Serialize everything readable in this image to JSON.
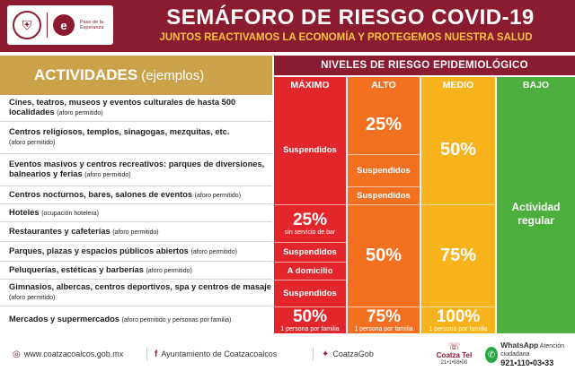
{
  "header": {
    "title": "SEMÁFORO DE RIESGO COVID-19",
    "subtitle": "JUNTOS REACTIVAMOS LA ECONOMÍA Y PROTEGEMOS NUESTRA SALUD",
    "logo_text": "Paso de la Esperanza"
  },
  "activities_heading": {
    "main": "ACTIVIDADES",
    "suffix": "(ejemplos)"
  },
  "levels_heading": "NIVELES DE RIESGO EPIDEMIOLÓGICO",
  "levels": [
    "MÁXIMO",
    "ALTO",
    "MEDIO",
    "BAJO"
  ],
  "colors": {
    "maroon": "#8b1b2e",
    "maximo": "#e3262c",
    "alto": "#f37021",
    "medio": "#f7b21c",
    "bajo": "#4caf3d",
    "gold": "#c9a24a"
  },
  "activities": [
    {
      "main": "Cines, teatros, museos y eventos culturales de hasta 500 localidades",
      "note": "(aforo permitido)"
    },
    {
      "main": "Centros religiosos, templos, sinagogas, mezquitas, etc.",
      "note": "(aforo permitido)"
    },
    {
      "main": "Eventos masivos y centros recreativos: parques de diversiones, balnearios y ferias",
      "note": "(aforo permitido)"
    },
    {
      "main": "Centros nocturnos, bares, salones de eventos",
      "note": "(aforo permitido)"
    },
    {
      "main": "Hoteles",
      "note": "(ocupación hotelera)"
    },
    {
      "main": "Restaurantes y cafeterías",
      "note": "(aforo permitido)"
    },
    {
      "main": "Parques, plazas y espacios públicos abiertos",
      "note": "(aforo permitido)"
    },
    {
      "main": "Peluquerías, estéticas y barberías",
      "note": "(aforo permitido)"
    },
    {
      "main": "Gimnasios, albercas, centros deportivos, spa y centros de masaje",
      "note": "(aforo permitido)"
    },
    {
      "main": "Mercados y supermercados",
      "note": "(aforo permitido y personas por familia)"
    }
  ],
  "cells": {
    "max_suspendidos_1": "Suspendidos",
    "max_25": "25%",
    "max_25_note": "sin servicio de bar",
    "max_suspendidos_2": "Suspendidos",
    "max_domicilio": "A domicilio",
    "max_suspendidos_3": "Suspendidos",
    "max_50": "50%",
    "max_50_note": "1 persona por familia",
    "alto_25": "25%",
    "alto_suspendidos_1": "Suspendidos",
    "alto_suspendidos_2": "Suspendidos",
    "alto_50": "50%",
    "alto_75": "75%",
    "alto_75_note": "1 persona por familia",
    "med_50": "50%",
    "med_75": "75%",
    "med_100": "100%",
    "med_100_note": "1 persona por familia",
    "bajo_text": "Actividad regular"
  },
  "footer": {
    "website": "www.coatzacoalcos.gob.mx",
    "facebook": "Ayuntamiento de Coatzacoalcos",
    "twitter": "CoatzaGob",
    "tel_name": "Coatza Tel",
    "tel_number": "21•1•08•00",
    "whatsapp_label": "WhatsApp",
    "whatsapp_sub": "Atención ciudadana",
    "whatsapp_number": "921•110•03•33"
  }
}
